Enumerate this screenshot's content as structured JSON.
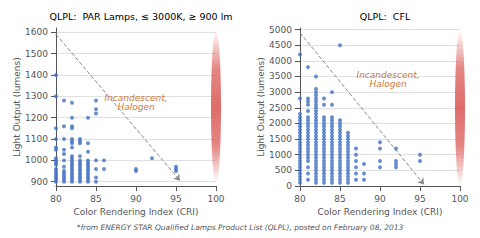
{
  "footnote": "*from ENERGY STAR Qualified Lamps Product List (QLPL), posted on February 08, 2013",
  "chart_data": [
    {
      "type": "scatter",
      "title": "QLPL:  PAR Lamps, ≤ 3000K, ≥ 900 lm",
      "xlabel": "Color Rendering Index (CRI)",
      "ylabel": "Light Output (lumens)",
      "color": "#4472c4",
      "xlim": [
        80,
        100
      ],
      "ylim": [
        880,
        1620
      ],
      "xticks": [
        80,
        85,
        90,
        95,
        100
      ],
      "yticks": [
        900,
        1000,
        1100,
        1200,
        1300,
        1400,
        1500,
        1600
      ],
      "grid": true,
      "x": [
        80,
        80,
        80,
        80,
        80,
        80,
        80,
        80,
        80,
        80,
        80,
        80,
        80,
        80,
        80,
        80,
        80,
        81,
        81,
        81,
        81,
        81,
        81,
        81,
        81,
        81,
        81,
        81,
        81,
        81,
        82,
        82,
        82,
        82,
        82,
        82,
        82,
        82,
        82,
        82,
        82,
        82,
        82,
        82,
        82,
        82,
        82,
        82,
        82,
        82,
        82,
        83,
        83,
        83,
        83,
        83,
        83,
        83,
        83,
        83,
        83,
        83,
        83,
        83,
        83,
        83,
        84,
        84,
        84,
        84,
        84,
        84,
        84,
        84,
        84,
        84,
        84,
        84,
        84,
        84,
        85,
        85,
        85,
        85,
        85,
        85,
        85,
        86,
        86,
        90,
        90,
        92,
        95,
        95,
        95
      ],
      "values": [
        900,
        910,
        920,
        930,
        940,
        950,
        960,
        980,
        990,
        1000,
        1010,
        1050,
        1060,
        1100,
        1150,
        1300,
        1400,
        900,
        910,
        920,
        930,
        940,
        950,
        970,
        1000,
        1030,
        1050,
        1100,
        1160,
        1280,
        900,
        910,
        920,
        930,
        940,
        950,
        960,
        970,
        980,
        990,
        1000,
        1010,
        1020,
        1060,
        1080,
        1090,
        1100,
        1150,
        1160,
        1200,
        1270,
        900,
        910,
        920,
        930,
        940,
        950,
        960,
        970,
        980,
        990,
        1000,
        1020,
        1080,
        1090,
        1100,
        900,
        910,
        920,
        930,
        940,
        950,
        960,
        970,
        980,
        990,
        1000,
        1040,
        1080,
        1200,
        900,
        920,
        960,
        1000,
        1220,
        1240,
        1280,
        960,
        1000,
        950,
        960,
        1010,
        950,
        960,
        970
      ],
      "annotation": {
        "text": "Incandescent,\nHalogen",
        "x": 90,
        "y": 1270,
        "color": "#c87941"
      },
      "arrow": {
        "from": [
          80,
          1590
        ],
        "to": [
          95.5,
          905
        ],
        "color": "#888888"
      },
      "highlight": {
        "x": 100,
        "from": 890,
        "to": 1610,
        "color": "#d9534f"
      }
    },
    {
      "type": "scatter",
      "title": "QLPL:  CFL",
      "xlabel": "Color Rendering Index (CRI)",
      "ylabel": "Light Output (lumens)",
      "color": "#4472c4",
      "xlim": [
        80,
        100
      ],
      "ylim": [
        0,
        5050
      ],
      "xticks": [
        80,
        85,
        90,
        95,
        100
      ],
      "yticks": [
        0,
        500,
        1000,
        1500,
        2000,
        2500,
        3000,
        3500,
        4000,
        4500,
        5000
      ],
      "grid": true,
      "x": [
        80,
        80,
        80,
        80,
        80,
        80,
        80,
        80,
        80,
        80,
        80,
        80,
        80,
        80,
        80,
        80,
        80,
        80,
        80,
        80,
        80,
        80,
        80,
        80,
        80,
        81,
        81,
        81,
        81,
        81,
        81,
        81,
        81,
        81,
        81,
        81,
        81,
        81,
        81,
        81,
        81,
        81,
        81,
        81,
        81,
        81,
        81,
        81,
        82,
        82,
        82,
        82,
        82,
        82,
        82,
        82,
        82,
        82,
        82,
        82,
        82,
        82,
        82,
        82,
        82,
        82,
        82,
        82,
        82,
        82,
        82,
        82,
        82,
        82,
        82,
        82,
        82,
        82,
        82,
        82,
        83,
        83,
        83,
        83,
        83,
        83,
        83,
        83,
        83,
        83,
        83,
        83,
        83,
        83,
        83,
        83,
        83,
        83,
        83,
        83,
        83,
        83,
        83,
        83,
        84,
        84,
        84,
        84,
        84,
        84,
        84,
        84,
        84,
        84,
        84,
        84,
        84,
        84,
        84,
        84,
        84,
        84,
        84,
        84,
        84,
        84,
        84,
        84,
        85,
        85,
        85,
        85,
        85,
        85,
        85,
        85,
        85,
        85,
        85,
        85,
        85,
        85,
        85,
        85,
        85,
        85,
        85,
        85,
        85,
        85,
        86,
        86,
        86,
        86,
        86,
        86,
        86,
        86,
        86,
        86,
        86,
        86,
        86,
        86,
        86,
        86,
        86,
        87,
        87,
        87,
        87,
        87,
        87,
        88,
        88,
        88,
        90,
        90,
        90,
        90,
        92,
        92,
        92,
        92,
        95,
        95
      ],
      "values": [
        100,
        200,
        300,
        400,
        500,
        600,
        700,
        800,
        900,
        1000,
        1100,
        1200,
        1300,
        1400,
        1500,
        1600,
        1700,
        1800,
        1900,
        2000,
        2100,
        2200,
        2300,
        2800,
        4200,
        200,
        400,
        600,
        800,
        900,
        1000,
        1100,
        1200,
        1300,
        1400,
        1500,
        1600,
        1700,
        1800,
        1900,
        2000,
        2100,
        2200,
        2400,
        2600,
        2700,
        2800,
        3800,
        100,
        200,
        300,
        400,
        500,
        600,
        700,
        800,
        900,
        1000,
        1100,
        1200,
        1300,
        1400,
        1500,
        1600,
        1700,
        1800,
        1900,
        2000,
        2100,
        2200,
        2300,
        2400,
        2500,
        2600,
        2700,
        2800,
        2900,
        3000,
        3100,
        3500,
        100,
        200,
        300,
        400,
        500,
        600,
        700,
        800,
        900,
        1000,
        1100,
        1200,
        1300,
        1400,
        1500,
        1600,
        1700,
        1800,
        1900,
        2000,
        2100,
        2200,
        2600,
        2800,
        100,
        200,
        300,
        400,
        500,
        600,
        700,
        800,
        900,
        1000,
        1100,
        1200,
        1300,
        1400,
        1500,
        1600,
        1700,
        1800,
        1900,
        2000,
        2100,
        2200,
        2600,
        3000,
        100,
        200,
        300,
        400,
        500,
        600,
        700,
        800,
        900,
        1000,
        1100,
        1200,
        1300,
        1400,
        1500,
        1600,
        1700,
        1800,
        1900,
        2000,
        2100,
        4500,
        100,
        200,
        300,
        400,
        500,
        600,
        700,
        800,
        900,
        1000,
        1100,
        1200,
        1300,
        1400,
        1500,
        1600,
        1700,
        200,
        400,
        600,
        800,
        1000,
        1200,
        200,
        400,
        700,
        600,
        800,
        1200,
        1400,
        600,
        700,
        800,
        1200,
        800,
        1000
      ],
      "annotation": {
        "text": "Incandescent,\nHalogen",
        "x": 91,
        "y": 3400,
        "color": "#c87941"
      },
      "arrow": {
        "from": [
          80,
          4900
        ],
        "to": [
          95.5,
          50
        ],
        "color": "#888888"
      },
      "highlight": {
        "x": 100,
        "from": 0,
        "to": 5000,
        "color": "#d9534f"
      }
    }
  ]
}
